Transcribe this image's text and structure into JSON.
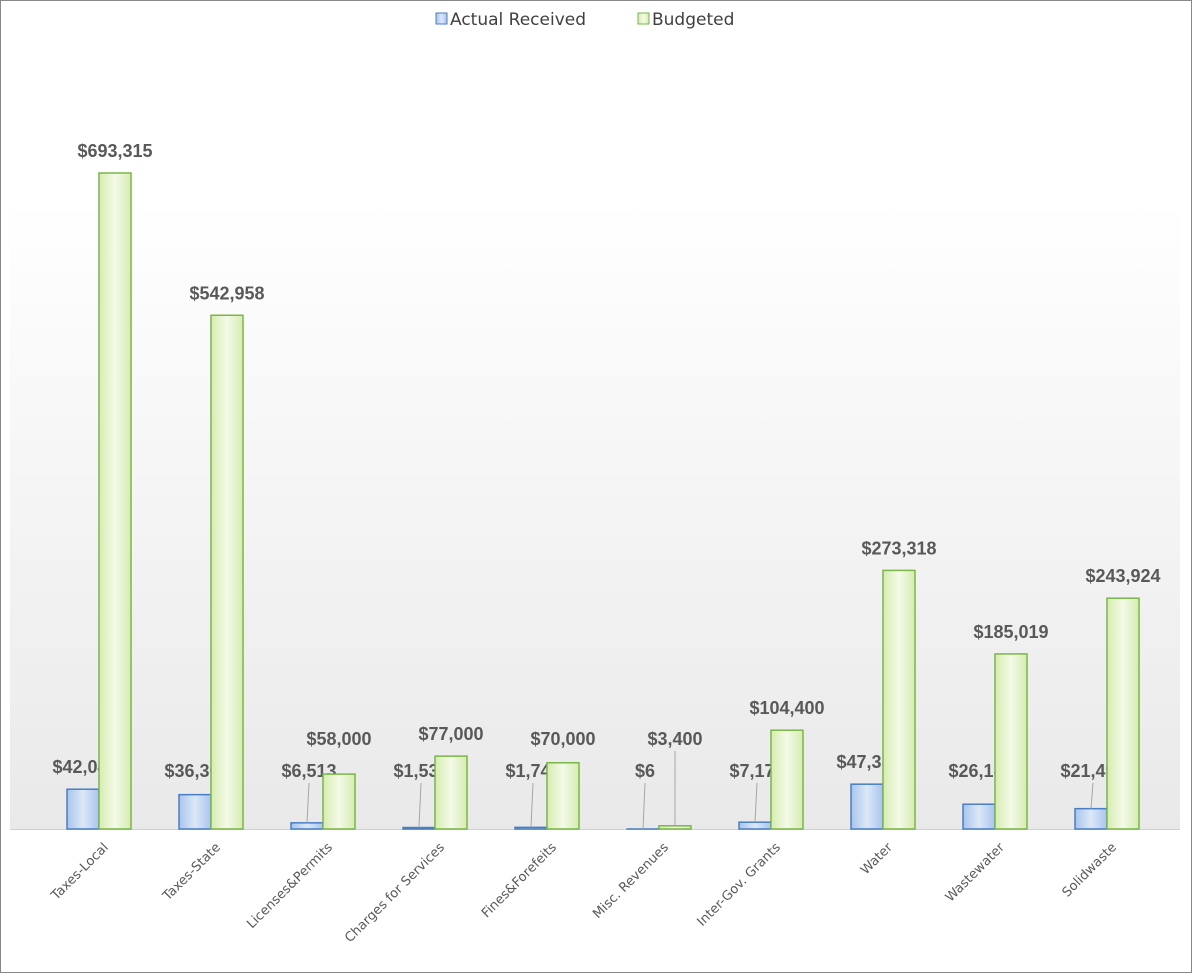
{
  "chart_data": {
    "type": "bar",
    "categories": [
      "Taxes-Local",
      "Taxes-State",
      "Licenses&Permits",
      "Charges for Services",
      "Fines&Forefeits",
      "Misc. Revenues",
      "Inter-Gov. Grants",
      "Water",
      "Wastewater",
      "Solidwaste"
    ],
    "series": [
      {
        "name": "Actual Received",
        "color": "#4a7ec4",
        "values": [
          42040,
          36309,
          6513,
          1538,
          1744,
          6,
          7175,
          47359,
          26181,
          21492
        ],
        "value_labels": [
          "$42,040",
          "$36,309",
          "$6,513",
          "$1,538",
          "$1,744",
          "$6",
          "$7,175",
          "$47,359",
          "$26,181",
          "$21,492"
        ]
      },
      {
        "name": "Budgeted",
        "color": "#7ab648",
        "values": [
          693315,
          542958,
          58000,
          77000,
          70000,
          3400,
          104400,
          273318,
          185019,
          243924
        ],
        "value_labels": [
          "$693,315",
          "$542,958",
          "$58,000",
          "$77,000",
          "$70,000",
          "$3,400",
          "$104,400",
          "$273,318",
          "$185,019",
          "$243,924"
        ]
      }
    ]
  }
}
